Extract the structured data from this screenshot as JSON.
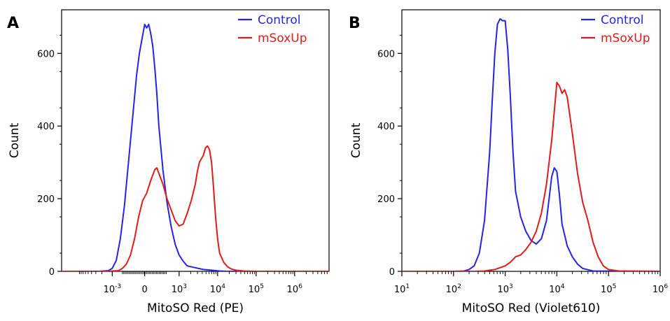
{
  "colors": {
    "control": "#2424e8",
    "msoxup": "#e11b1b",
    "axis": "#000000"
  },
  "chart_data": [
    {
      "type": "line",
      "panel_label": "A",
      "xlabel": "MitoSO Red (PE)",
      "ylabel": "Count",
      "x_scale": "biexponential",
      "xlim": [
        -0.3,
        6.3
      ],
      "ylim": [
        0,
        720
      ],
      "y_ticks": [
        0,
        200,
        400,
        600
      ],
      "y_tick_labels": [
        "0",
        "200",
        "400",
        "600"
      ],
      "x_ticks": [
        {
          "pos": 0.95,
          "base": "10",
          "exp": "-3"
        },
        {
          "pos": 1.75,
          "base": "0",
          "exp": ""
        },
        {
          "pos": 2.6,
          "base": "10",
          "exp": "3"
        },
        {
          "pos": 3.55,
          "base": "10",
          "exp": "4"
        },
        {
          "pos": 4.5,
          "base": "10",
          "exp": "5"
        },
        {
          "pos": 5.45,
          "base": "10",
          "exp": "6"
        }
      ],
      "legend": [
        "Control",
        "mSoxUp"
      ],
      "series": [
        {
          "name": "Control",
          "x": [
            -0.3,
            0.6,
            0.85,
            0.95,
            1.05,
            1.15,
            1.25,
            1.35,
            1.45,
            1.55,
            1.62,
            1.7,
            1.75,
            1.8,
            1.85,
            1.9,
            1.95,
            2.0,
            2.05,
            2.1,
            2.2,
            2.3,
            2.4,
            2.5,
            2.6,
            2.7,
            2.8,
            3.0,
            3.2,
            3.4,
            3.6,
            3.8,
            4.0,
            6.3
          ],
          "y": [
            0,
            0,
            2,
            8,
            30,
            90,
            180,
            300,
            420,
            540,
            600,
            650,
            680,
            670,
            680,
            655,
            620,
            560,
            490,
            400,
            280,
            190,
            125,
            75,
            45,
            28,
            15,
            10,
            5,
            3,
            1,
            0,
            0,
            0
          ]
        },
        {
          "name": "mSoxUp",
          "x": [
            -0.3,
            0.8,
            1.1,
            1.2,
            1.3,
            1.4,
            1.5,
            1.6,
            1.7,
            1.8,
            1.9,
            2.0,
            2.05,
            2.1,
            2.2,
            2.3,
            2.4,
            2.5,
            2.6,
            2.7,
            2.8,
            2.9,
            3.0,
            3.05,
            3.1,
            3.2,
            3.25,
            3.3,
            3.35,
            3.4,
            3.45,
            3.5,
            3.55,
            3.6,
            3.7,
            3.8,
            3.9,
            4.0,
            4.2,
            4.5,
            6.3
          ],
          "y": [
            0,
            0,
            2,
            8,
            20,
            45,
            90,
            150,
            195,
            215,
            250,
            280,
            285,
            270,
            240,
            200,
            170,
            140,
            125,
            130,
            160,
            195,
            240,
            275,
            300,
            320,
            340,
            345,
            335,
            300,
            230,
            150,
            90,
            50,
            25,
            12,
            6,
            3,
            1,
            0,
            0
          ]
        }
      ]
    },
    {
      "type": "line",
      "panel_label": "B",
      "xlabel": "MitoSO Red (Violet610)",
      "ylabel": "Count",
      "x_scale": "log",
      "xlim": [
        1,
        6
      ],
      "ylim": [
        0,
        720
      ],
      "y_ticks": [
        0,
        200,
        400,
        600
      ],
      "y_tick_labels": [
        "0",
        "200",
        "400",
        "600"
      ],
      "x_ticks": [
        {
          "pos": 1,
          "base": "10",
          "exp": "1"
        },
        {
          "pos": 2,
          "base": "10",
          "exp": "2"
        },
        {
          "pos": 3,
          "base": "10",
          "exp": "3"
        },
        {
          "pos": 4,
          "base": "10",
          "exp": "4"
        },
        {
          "pos": 5,
          "base": "10",
          "exp": "5"
        },
        {
          "pos": 6,
          "base": "10",
          "exp": "6"
        }
      ],
      "legend": [
        "Control",
        "mSoxUp"
      ],
      "series": [
        {
          "name": "Control",
          "x": [
            1,
            2.0,
            2.2,
            2.3,
            2.4,
            2.5,
            2.6,
            2.7,
            2.75,
            2.8,
            2.85,
            2.9,
            2.95,
            3.0,
            3.05,
            3.1,
            3.15,
            3.2,
            3.3,
            3.4,
            3.5,
            3.6,
            3.7,
            3.8,
            3.85,
            3.9,
            3.95,
            4.0,
            4.05,
            4.1,
            4.2,
            4.3,
            4.4,
            4.5,
            4.7,
            6
          ],
          "y": [
            0,
            0,
            1,
            5,
            15,
            50,
            140,
            330,
            470,
            600,
            680,
            695,
            690,
            690,
            610,
            480,
            330,
            220,
            150,
            110,
            85,
            75,
            90,
            140,
            200,
            260,
            285,
            275,
            210,
            130,
            70,
            40,
            20,
            8,
            1,
            0
          ]
        },
        {
          "name": "mSoxUp",
          "x": [
            1,
            2.4,
            2.6,
            2.8,
            3.0,
            3.1,
            3.2,
            3.3,
            3.4,
            3.5,
            3.6,
            3.7,
            3.8,
            3.9,
            3.95,
            4.0,
            4.05,
            4.1,
            4.15,
            4.2,
            4.25,
            4.3,
            4.4,
            4.5,
            4.6,
            4.7,
            4.8,
            4.9,
            5.0,
            5.2,
            6
          ],
          "y": [
            0,
            0,
            1,
            5,
            15,
            25,
            40,
            45,
            60,
            80,
            110,
            160,
            240,
            360,
            440,
            520,
            510,
            490,
            500,
            480,
            430,
            380,
            270,
            190,
            140,
            80,
            40,
            15,
            5,
            1,
            0
          ]
        }
      ]
    }
  ]
}
